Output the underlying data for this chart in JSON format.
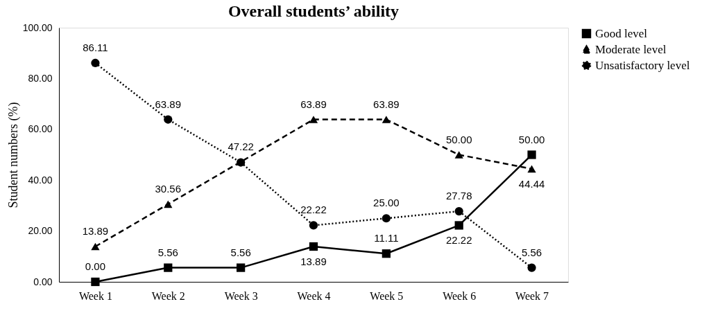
{
  "chart_data": {
    "type": "line",
    "title": "Overall students’ ability",
    "ylabel": "Student numbers (%)",
    "categories": [
      "Week 1",
      "Week 2",
      "Week 3",
      "Week 4",
      "Week 5",
      "Week 6",
      "Week 7"
    ],
    "ylim": [
      0,
      100
    ],
    "yticks": [
      {
        "value": 0,
        "label": "0.00"
      },
      {
        "value": 20,
        "label": "20.00"
      },
      {
        "value": 40,
        "label": "40.00"
      },
      {
        "value": 60,
        "label": "60.00"
      },
      {
        "value": 80,
        "label": "80.00"
      },
      {
        "value": 100,
        "label": "100.00"
      }
    ],
    "grid": false,
    "legend": "right",
    "series": [
      {
        "name": "Good level",
        "color": "#000000",
        "marker": "square",
        "line_style": "solid",
        "values": [
          0,
          5.56,
          5.56,
          13.89,
          11.11,
          22.22,
          50.0
        ],
        "value_labels": [
          "0.00",
          "5.56",
          "5.56",
          "13.89",
          "11.11",
          "22.22",
          "50.00"
        ]
      },
      {
        "name": "Moderate level",
        "color": "#000000",
        "marker": "triangle",
        "line_style": "dashed",
        "values": [
          13.89,
          30.56,
          47.22,
          63.89,
          63.89,
          50.0,
          44.44
        ],
        "value_labels": [
          "13.89",
          "30.56",
          "47.22",
          "63.89",
          "63.89",
          "50.00",
          "44.44"
        ]
      },
      {
        "name": "Unsatisfactory level",
        "color": "#000000",
        "marker": "circle",
        "line_style": "dotted",
        "values": [
          86.11,
          63.89,
          47,
          22.22,
          25.0,
          27.78,
          5.56
        ],
        "value_labels": [
          "86.11",
          "63.89",
          null,
          "22.22",
          "25.00",
          "27.78",
          "5.56"
        ]
      }
    ]
  }
}
